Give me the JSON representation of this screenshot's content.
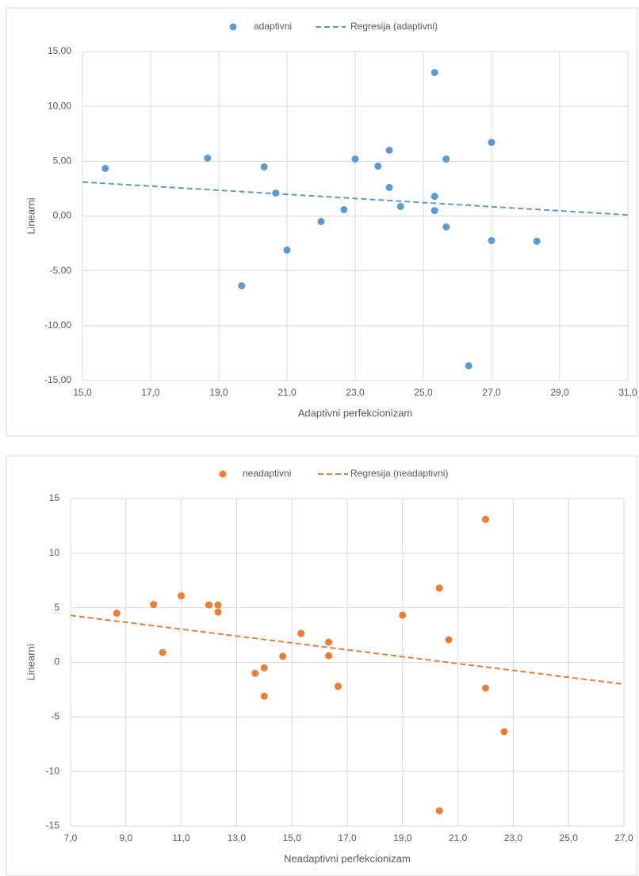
{
  "chart_data": [
    {
      "type": "scatter",
      "xlabel": "Adaptivni perfekcionizam",
      "ylabel": "Linearni",
      "xlim": [
        15,
        31
      ],
      "ylim": [
        -15,
        15
      ],
      "xticks": [
        {
          "value": 15,
          "label": "15,0"
        },
        {
          "value": 17,
          "label": "17,0"
        },
        {
          "value": 19,
          "label": "19,0"
        },
        {
          "value": 21,
          "label": "21,0"
        },
        {
          "value": 23,
          "label": "23,0"
        },
        {
          "value": 25,
          "label": "25,0"
        },
        {
          "value": 27,
          "label": "27,0"
        },
        {
          "value": 29,
          "label": "29,0"
        },
        {
          "value": 31,
          "label": "31,0"
        }
      ],
      "yticks": [
        {
          "value": -15,
          "label": "-15,00"
        },
        {
          "value": -10,
          "label": "-10,00"
        },
        {
          "value": -5,
          "label": "-5,00"
        },
        {
          "value": 0,
          "label": "0,00"
        },
        {
          "value": 5,
          "label": "5,00"
        },
        {
          "value": 10,
          "label": "10,00"
        },
        {
          "value": 15,
          "label": "15,00"
        }
      ],
      "grid": true,
      "series": [
        {
          "name": "adaptivni",
          "color": "#5b9bd5",
          "x": [
            15.67,
            18.67,
            20.33,
            20.67,
            19.67,
            21,
            22,
            22.67,
            23,
            23.67,
            24,
            24,
            24.33,
            25.33,
            25.33,
            25.33,
            25.67,
            25.67,
            26.33,
            27,
            27,
            28.33
          ],
          "values": [
            4.34,
            5.28,
            4.48,
            2.1,
            -6.36,
            -3.1,
            -0.5,
            0.58,
            5.2,
            4.55,
            6.0,
            2.6,
            0.87,
            13.08,
            1.8,
            0.5,
            5.2,
            -1.0,
            -13.66,
            6.72,
            -2.24,
            -2.3
          ]
        },
        {
          "name": "Regresija (adaptivni)",
          "color": "#5b9bd5",
          "style": "dashed",
          "x": [
            15,
            31
          ],
          "values": [
            3.1,
            0.1
          ]
        }
      ]
    },
    {
      "type": "scatter",
      "xlabel": "Neadaptivni perfekcionizam",
      "ylabel": "Linearni",
      "xlim": [
        7,
        27
      ],
      "ylim": [
        -15,
        15
      ],
      "xticks": [
        {
          "value": 7,
          "label": "7,0"
        },
        {
          "value": 9,
          "label": "9,0"
        },
        {
          "value": 11,
          "label": "11,0"
        },
        {
          "value": 13,
          "label": "13,0"
        },
        {
          "value": 15,
          "label": "15,0"
        },
        {
          "value": 17,
          "label": "17,0"
        },
        {
          "value": 19,
          "label": "19,0"
        },
        {
          "value": 21,
          "label": "21,0"
        },
        {
          "value": 23,
          "label": "23,0"
        },
        {
          "value": 25,
          "label": "25,0"
        },
        {
          "value": 27,
          "label": "27,0"
        }
      ],
      "yticks": [
        -15,
        -10,
        -5,
        0,
        5,
        10,
        15
      ],
      "grid": true,
      "series": [
        {
          "name": "neadaptivni",
          "color": "#ed7d31",
          "x": [
            8.67,
            10,
            10.33,
            11,
            12,
            12.33,
            12.33,
            13.67,
            14,
            14,
            14.67,
            15.33,
            16.33,
            16.33,
            16.67,
            19,
            20.33,
            20.67,
            22,
            22,
            22.67,
            20.33
          ],
          "values": [
            4.5,
            5.3,
            0.9,
            6.1,
            5.26,
            5.26,
            4.6,
            -1.0,
            -0.5,
            -3.1,
            0.55,
            2.65,
            1.85,
            0.6,
            -2.2,
            4.32,
            6.8,
            2.07,
            13.1,
            -2.36,
            -6.36,
            -13.6
          ]
        },
        {
          "name": "Regresija (neadaptivni)",
          "color": "#ed7d31",
          "style": "dashed",
          "x": [
            7,
            27
          ],
          "values": [
            4.3,
            -2.0
          ]
        }
      ]
    }
  ]
}
